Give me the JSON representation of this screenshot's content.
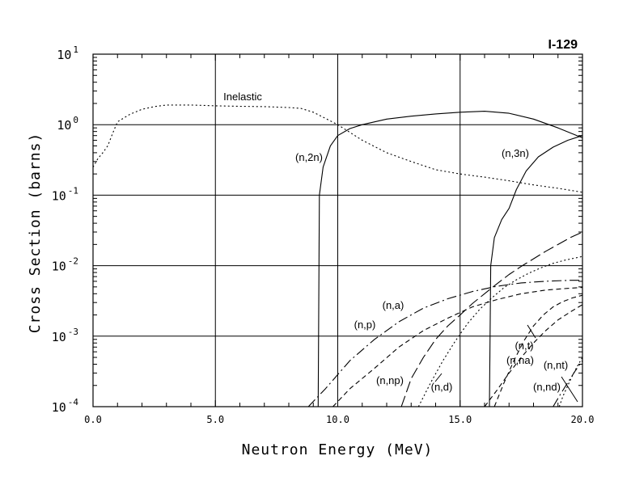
{
  "chart_data": {
    "type": "line",
    "title": "I-129",
    "xlabel": "Neutron Energy (MeV)",
    "ylabel": "Cross Section (barns)",
    "xlim": [
      0.0,
      20.0
    ],
    "ylim": [
      0.0001,
      10
    ],
    "yscale": "log",
    "grid": true,
    "x_ticks": [
      "0.0",
      "5.0",
      "10.0",
      "15.0",
      "20.0"
    ],
    "y_ticks": [
      {
        "base": "10",
        "exp": "-4"
      },
      {
        "base": "10",
        "exp": "-3"
      },
      {
        "base": "10",
        "exp": "-2"
      },
      {
        "base": "10",
        "exp": "-1"
      },
      {
        "base": "10",
        "exp": "0"
      },
      {
        "base": "10",
        "exp": "1"
      }
    ],
    "series": [
      {
        "name": "Inelastic",
        "style": "dotted",
        "x": [
          0.0,
          0.2,
          0.4,
          0.6,
          0.8,
          1.0,
          1.5,
          2.0,
          2.5,
          3.0,
          4.0,
          5.0,
          6.0,
          7.0,
          8.0,
          8.5,
          9.0,
          10.0,
          11.0,
          12.0,
          13.0,
          14.0,
          15.0,
          16.0,
          17.0,
          18.0,
          19.0,
          20.0
        ],
        "y": [
          0.25,
          0.33,
          0.4,
          0.5,
          0.75,
          1.1,
          1.4,
          1.65,
          1.8,
          1.9,
          1.9,
          1.85,
          1.82,
          1.8,
          1.75,
          1.7,
          1.5,
          1.0,
          0.6,
          0.4,
          0.3,
          0.23,
          0.2,
          0.18,
          0.16,
          0.14,
          0.125,
          0.11
        ]
      },
      {
        "name": "(n,2n)",
        "style": "solid",
        "x": [
          9.2,
          9.25,
          9.4,
          9.7,
          10.0,
          10.5,
          11.0,
          12.0,
          13.0,
          14.0,
          15.0,
          16.0,
          17.0,
          18.0,
          19.0,
          20.0
        ],
        "y": [
          0.0001,
          0.1,
          0.25,
          0.5,
          0.7,
          0.88,
          1.0,
          1.2,
          1.32,
          1.42,
          1.5,
          1.55,
          1.45,
          1.2,
          0.9,
          0.65
        ]
      },
      {
        "name": "(n,3n)",
        "style": "solid",
        "x": [
          16.2,
          16.25,
          16.4,
          16.7,
          17.0,
          17.3,
          17.7,
          18.2,
          18.8,
          19.4,
          20.0
        ],
        "y": [
          0.0001,
          0.01,
          0.025,
          0.045,
          0.065,
          0.12,
          0.22,
          0.35,
          0.48,
          0.6,
          0.7
        ]
      },
      {
        "name": "(n,a)",
        "style": "dash-dot",
        "x": [
          8.8,
          9.5,
          10.5,
          11.5,
          12.5,
          13.5,
          14.5,
          15.5,
          16.5,
          17.5,
          18.5,
          19.5,
          20.0
        ],
        "y": [
          0.0001,
          0.00018,
          0.00045,
          0.0009,
          0.0016,
          0.0025,
          0.0034,
          0.0043,
          0.0051,
          0.0057,
          0.006,
          0.0062,
          0.0062
        ]
      },
      {
        "name": "(n,p)",
        "style": "long-dash",
        "x": [
          12.6,
          13.0,
          13.5,
          14.0,
          14.5,
          15.0,
          15.5,
          16.0,
          16.5,
          17.0,
          17.5,
          18.0,
          18.5,
          19.0,
          19.5,
          20.0
        ],
        "y": [
          0.0001,
          0.00025,
          0.0005,
          0.0009,
          0.0014,
          0.002,
          0.0029,
          0.004,
          0.0055,
          0.0075,
          0.0098,
          0.0125,
          0.016,
          0.02,
          0.025,
          0.03
        ]
      },
      {
        "name": "(n,np)",
        "style": "dashed",
        "x": [
          9.8,
          10.5,
          11.5,
          12.5,
          13.5,
          14.5,
          15.5,
          16.5,
          17.5,
          18.5,
          19.5,
          20.0
        ],
        "y": [
          0.0001,
          0.00018,
          0.00035,
          0.0007,
          0.0012,
          0.0018,
          0.0026,
          0.0033,
          0.004,
          0.0045,
          0.0048,
          0.0049
        ]
      },
      {
        "name": "(n,d)",
        "style": "dotted",
        "x": [
          13.3,
          13.8,
          14.3,
          14.8,
          15.3,
          15.8,
          16.3,
          16.8,
          17.3,
          17.8,
          18.3,
          18.8,
          19.3,
          20.0
        ],
        "y": [
          0.0001,
          0.00022,
          0.00045,
          0.00085,
          0.0015,
          0.0024,
          0.0035,
          0.0049,
          0.0063,
          0.0078,
          0.0093,
          0.0108,
          0.012,
          0.0135
        ]
      },
      {
        "name": "(n,t)",
        "style": "dashed",
        "x": [
          16.4,
          16.8,
          17.2,
          17.6,
          18.0,
          18.4,
          18.8,
          19.2,
          19.6,
          20.0
        ],
        "y": [
          0.0001,
          0.00022,
          0.00045,
          0.00085,
          0.0014,
          0.002,
          0.0026,
          0.0031,
          0.0035,
          0.0038
        ]
      },
      {
        "name": "(n,na)",
        "style": "dashed",
        "x": [
          16.0,
          16.5,
          17.0,
          17.5,
          18.0,
          18.5,
          19.0,
          19.5,
          20.0
        ],
        "y": [
          0.0001,
          0.00017,
          0.0003,
          0.0005,
          0.0008,
          0.0012,
          0.0017,
          0.0022,
          0.0028
        ]
      },
      {
        "name": "(n,nt)",
        "style": "dotted",
        "x": [
          19.05,
          19.2,
          19.4,
          19.6,
          19.8,
          20.0
        ],
        "y": [
          0.0001,
          0.00014,
          0.0002,
          0.00028,
          0.00038,
          0.0005
        ]
      },
      {
        "name": "(n,nd)",
        "style": "dash-dot",
        "x": [
          18.8,
          19.1,
          19.4,
          19.7,
          20.0
        ],
        "y": [
          0.0001,
          0.00015,
          0.00022,
          0.00032,
          0.00045
        ]
      }
    ]
  }
}
